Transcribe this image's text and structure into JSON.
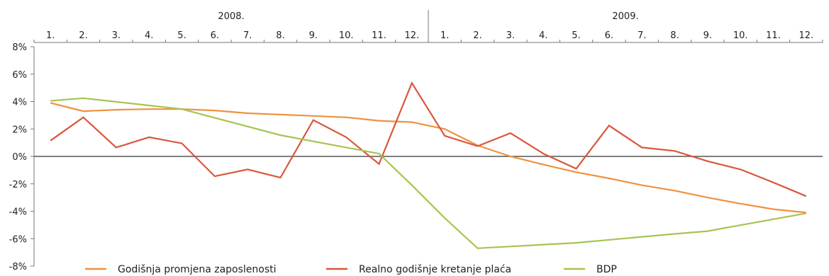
{
  "chart_data": {
    "type": "line",
    "years": [
      "2008.",
      "2009."
    ],
    "months": [
      "1.",
      "2.",
      "3.",
      "4.",
      "5.",
      "6.",
      "7.",
      "8.",
      "9.",
      "10.",
      "11.",
      "12.",
      "1.",
      "2.",
      "3.",
      "4.",
      "5.",
      "6.",
      "7.",
      "8.",
      "9.",
      "10.",
      "11.",
      "12."
    ],
    "ylim": [
      -8,
      8
    ],
    "yticks": [
      "8%",
      "6%",
      "4%",
      "2%",
      "0%",
      "-2%",
      "-4%",
      "-6%",
      "-8%"
    ],
    "series": [
      {
        "name": "Godišnja promjena zaposlenosti",
        "color": "#F0913E",
        "values": [
          3.9,
          3.3,
          3.4,
          3.45,
          3.45,
          3.35,
          3.15,
          3.05,
          2.95,
          2.85,
          2.6,
          2.5,
          2.0,
          0.8,
          0.0,
          -0.6,
          -1.15,
          -1.6,
          -2.1,
          -2.5,
          -3.0,
          -3.45,
          -3.85,
          -4.1
        ]
      },
      {
        "name": "Realno godišnje kretanje plaća",
        "color": "#D9573B",
        "values": [
          1.15,
          2.85,
          0.65,
          1.4,
          0.95,
          -1.45,
          -0.95,
          -1.55,
          2.65,
          1.4,
          -0.55,
          5.35,
          1.5,
          0.75,
          1.7,
          0.2,
          -0.9,
          2.25,
          0.65,
          0.4,
          -0.35,
          -0.95,
          -1.9,
          -2.9
        ]
      },
      {
        "name": "BDP",
        "color": "#A5C551",
        "points": [
          [
            1,
            4.05
          ],
          [
            2,
            4.25
          ],
          [
            5,
            3.45
          ],
          [
            8,
            1.55
          ],
          [
            11,
            0.2
          ],
          [
            12,
            -2.1
          ],
          [
            13,
            -4.5
          ],
          [
            14,
            -6.7
          ],
          [
            17,
            -6.3
          ],
          [
            20,
            -5.65
          ],
          [
            21,
            -5.45
          ],
          [
            24,
            -4.15
          ]
        ]
      }
    ]
  }
}
